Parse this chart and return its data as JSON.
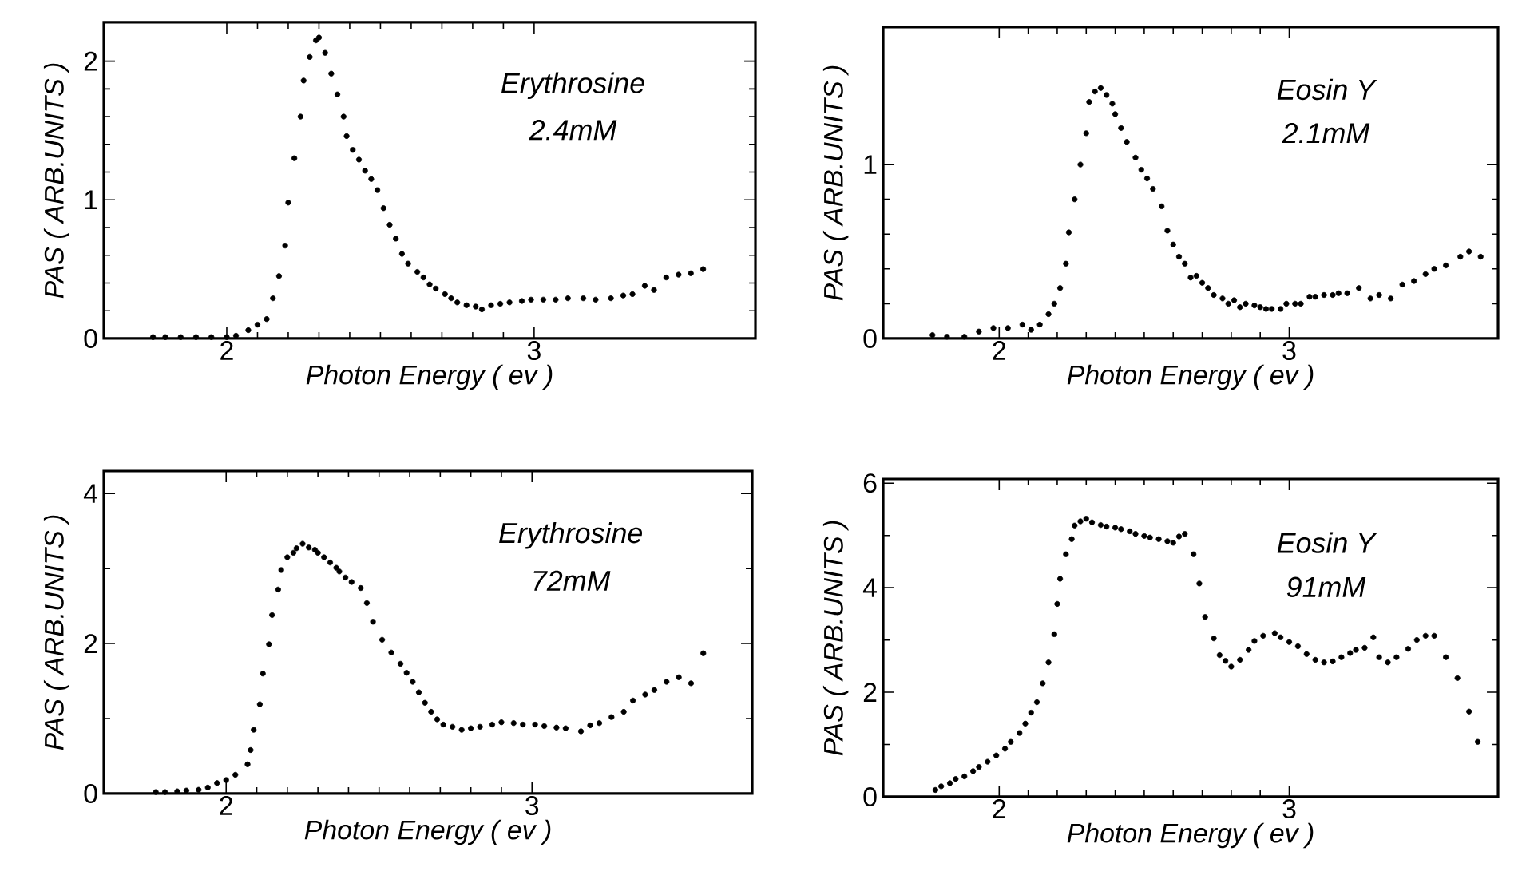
{
  "chart_data": [
    {
      "type": "scatter",
      "xlabel": "Photon Energy ( ev )",
      "ylabel": "PAS ( ARB.UNITS )",
      "annotations": [
        "Erythrosine",
        "2.4mM"
      ],
      "xlim": [
        1.6,
        3.72
      ],
      "ylim": [
        0,
        2.28
      ],
      "xticks": [
        2,
        3
      ],
      "yticks": [
        0,
        1,
        2
      ],
      "marker": "circle",
      "grid": false,
      "series": [
        {
          "color": "#000000",
          "x": [
            1.76,
            1.8,
            1.85,
            1.9,
            1.95,
            2.0,
            2.03,
            2.07,
            2.1,
            2.13,
            2.15,
            2.17,
            2.19,
            2.2,
            2.22,
            2.24,
            2.25,
            2.27,
            2.29,
            2.3,
            2.32,
            2.34,
            2.36,
            2.38,
            2.39,
            2.41,
            2.43,
            2.45,
            2.47,
            2.49,
            2.51,
            2.53,
            2.55,
            2.57,
            2.59,
            2.62,
            2.64,
            2.66,
            2.68,
            2.71,
            2.73,
            2.75,
            2.78,
            2.81,
            2.83,
            2.86,
            2.89,
            2.92,
            2.96,
            2.99,
            3.03,
            3.07,
            3.11,
            3.16,
            3.2,
            3.25,
            3.29,
            3.32,
            3.36,
            3.39,
            3.43,
            3.47,
            3.51,
            3.55
          ],
          "values": [
            0.01,
            0.01,
            0.01,
            0.01,
            0.01,
            0.01,
            0.02,
            0.06,
            0.1,
            0.14,
            0.29,
            0.45,
            0.67,
            0.98,
            1.3,
            1.6,
            1.86,
            2.03,
            2.15,
            2.17,
            2.06,
            1.91,
            1.76,
            1.6,
            1.46,
            1.36,
            1.29,
            1.21,
            1.15,
            1.07,
            0.94,
            0.82,
            0.72,
            0.61,
            0.54,
            0.48,
            0.44,
            0.39,
            0.36,
            0.32,
            0.29,
            0.26,
            0.24,
            0.23,
            0.21,
            0.24,
            0.25,
            0.26,
            0.27,
            0.28,
            0.28,
            0.28,
            0.29,
            0.29,
            0.28,
            0.29,
            0.31,
            0.32,
            0.38,
            0.35,
            0.44,
            0.46,
            0.47,
            0.5
          ]
        }
      ]
    },
    {
      "type": "scatter",
      "xlabel": "Photon Energy ( ev )",
      "ylabel": "PAS ( ARB.UNITS )",
      "annotations": [
        "Eosin Y",
        "2.1mM"
      ],
      "xlim": [
        1.6,
        3.72
      ],
      "ylim": [
        0,
        1.79
      ],
      "xticks": [
        2,
        3
      ],
      "yticks": [
        0,
        1
      ],
      "marker": "circle",
      "grid": false,
      "series": [
        {
          "color": "#000000",
          "x": [
            1.77,
            1.82,
            1.88,
            1.93,
            1.98,
            2.03,
            2.08,
            2.11,
            2.14,
            2.17,
            2.19,
            2.21,
            2.23,
            2.24,
            2.26,
            2.28,
            2.3,
            2.31,
            2.33,
            2.35,
            2.37,
            2.39,
            2.4,
            2.42,
            2.44,
            2.47,
            2.49,
            2.51,
            2.53,
            2.56,
            2.58,
            2.6,
            2.62,
            2.64,
            2.66,
            2.68,
            2.7,
            2.72,
            2.74,
            2.77,
            2.79,
            2.81,
            2.83,
            2.85,
            2.88,
            2.9,
            2.92,
            2.94,
            2.97,
            2.99,
            3.02,
            3.04,
            3.07,
            3.09,
            3.12,
            3.15,
            3.17,
            3.2,
            3.24,
            3.28,
            3.31,
            3.35,
            3.39,
            3.43,
            3.47,
            3.5,
            3.54,
            3.59,
            3.62,
            3.66
          ],
          "values": [
            0.02,
            0.01,
            0.01,
            0.04,
            0.06,
            0.06,
            0.08,
            0.05,
            0.08,
            0.14,
            0.2,
            0.29,
            0.43,
            0.61,
            0.8,
            1.0,
            1.18,
            1.36,
            1.42,
            1.44,
            1.4,
            1.35,
            1.29,
            1.21,
            1.13,
            1.04,
            0.97,
            0.92,
            0.86,
            0.76,
            0.62,
            0.54,
            0.47,
            0.43,
            0.35,
            0.36,
            0.32,
            0.29,
            0.25,
            0.23,
            0.2,
            0.22,
            0.18,
            0.2,
            0.19,
            0.18,
            0.17,
            0.17,
            0.17,
            0.2,
            0.2,
            0.2,
            0.24,
            0.24,
            0.25,
            0.25,
            0.26,
            0.26,
            0.29,
            0.23,
            0.25,
            0.23,
            0.31,
            0.33,
            0.37,
            0.4,
            0.42,
            0.47,
            0.5,
            0.47
          ]
        }
      ]
    },
    {
      "type": "scatter",
      "xlabel": "Photon Energy ( ev )",
      "ylabel": "PAS ( ARB.UNITS )",
      "annotations": [
        "Erythrosine",
        "72mM"
      ],
      "xlim": [
        1.6,
        3.72
      ],
      "ylim": [
        0,
        4.3
      ],
      "xticks": [
        2,
        3
      ],
      "yticks": [
        0,
        2,
        4
      ],
      "marker": "circle",
      "grid": false,
      "series": [
        {
          "color": "#000000",
          "x": [
            1.77,
            1.8,
            1.84,
            1.87,
            1.91,
            1.94,
            1.97,
            2.0,
            2.03,
            2.07,
            2.08,
            2.09,
            2.11,
            2.12,
            2.14,
            2.15,
            2.17,
            2.18,
            2.2,
            2.22,
            2.23,
            2.25,
            2.27,
            2.29,
            2.3,
            2.32,
            2.34,
            2.36,
            2.37,
            2.39,
            2.41,
            2.44,
            2.46,
            2.48,
            2.51,
            2.54,
            2.57,
            2.59,
            2.61,
            2.63,
            2.65,
            2.67,
            2.69,
            2.71,
            2.74,
            2.77,
            2.8,
            2.83,
            2.87,
            2.9,
            2.94,
            2.97,
            3.01,
            3.04,
            3.08,
            3.11,
            3.16,
            3.19,
            3.22,
            3.26,
            3.3,
            3.33,
            3.37,
            3.4,
            3.44,
            3.48,
            3.52,
            3.56
          ],
          "values": [
            0.02,
            0.02,
            0.03,
            0.04,
            0.05,
            0.08,
            0.14,
            0.18,
            0.25,
            0.39,
            0.58,
            0.85,
            1.19,
            1.6,
            1.99,
            2.38,
            2.72,
            2.98,
            3.15,
            3.21,
            3.27,
            3.33,
            3.28,
            3.25,
            3.21,
            3.15,
            3.08,
            3.01,
            2.96,
            2.88,
            2.82,
            2.74,
            2.54,
            2.29,
            2.05,
            1.88,
            1.73,
            1.61,
            1.49,
            1.35,
            1.21,
            1.09,
            0.99,
            0.92,
            0.89,
            0.85,
            0.87,
            0.89,
            0.92,
            0.95,
            0.94,
            0.92,
            0.92,
            0.9,
            0.88,
            0.87,
            0.83,
            0.91,
            0.94,
            1.02,
            1.09,
            1.24,
            1.32,
            1.38,
            1.49,
            1.55,
            1.47,
            1.87
          ]
        }
      ]
    },
    {
      "type": "scatter",
      "xlabel": "Photon Energy ( ev )",
      "ylabel": "PAS ( ARB.UNITS )",
      "annotations": [
        "Eosin Y",
        "91mM"
      ],
      "xlim": [
        1.6,
        3.72
      ],
      "ylim": [
        0,
        6.08
      ],
      "xticks": [
        2,
        3
      ],
      "yticks": [
        0,
        2,
        4,
        6
      ],
      "marker": "circle",
      "grid": false,
      "series": [
        {
          "color": "#000000",
          "x": [
            1.78,
            1.8,
            1.83,
            1.85,
            1.88,
            1.91,
            1.93,
            1.96,
            1.99,
            2.02,
            2.04,
            2.07,
            2.09,
            2.11,
            2.13,
            2.15,
            2.17,
            2.19,
            2.2,
            2.21,
            2.23,
            2.25,
            2.26,
            2.28,
            2.3,
            2.32,
            2.35,
            2.37,
            2.4,
            2.42,
            2.45,
            2.47,
            2.5,
            2.52,
            2.55,
            2.58,
            2.6,
            2.62,
            2.64,
            2.67,
            2.69,
            2.71,
            2.74,
            2.76,
            2.78,
            2.8,
            2.83,
            2.86,
            2.88,
            2.91,
            2.95,
            2.97,
            3.0,
            3.03,
            3.06,
            3.09,
            3.12,
            3.15,
            3.18,
            3.21,
            3.23,
            3.26,
            3.29,
            3.31,
            3.34,
            3.37,
            3.41,
            3.44,
            3.47,
            3.5,
            3.54,
            3.58,
            3.62,
            3.65
          ],
          "values": [
            0.13,
            0.2,
            0.26,
            0.34,
            0.39,
            0.49,
            0.57,
            0.67,
            0.79,
            0.92,
            1.05,
            1.22,
            1.4,
            1.61,
            1.81,
            2.17,
            2.57,
            3.11,
            3.69,
            4.17,
            4.64,
            4.93,
            5.19,
            5.27,
            5.32,
            5.25,
            5.2,
            5.17,
            5.15,
            5.12,
            5.08,
            5.03,
            4.99,
            4.96,
            4.93,
            4.89,
            4.86,
            4.98,
            5.03,
            4.64,
            4.08,
            3.44,
            3.03,
            2.71,
            2.6,
            2.49,
            2.62,
            2.81,
            2.98,
            3.08,
            3.13,
            3.05,
            2.96,
            2.88,
            2.73,
            2.62,
            2.57,
            2.59,
            2.67,
            2.75,
            2.81,
            2.85,
            3.05,
            2.67,
            2.57,
            2.67,
            2.83,
            3.0,
            3.08,
            3.08,
            2.67,
            2.27,
            1.63,
            1.05
          ]
        }
      ]
    }
  ]
}
